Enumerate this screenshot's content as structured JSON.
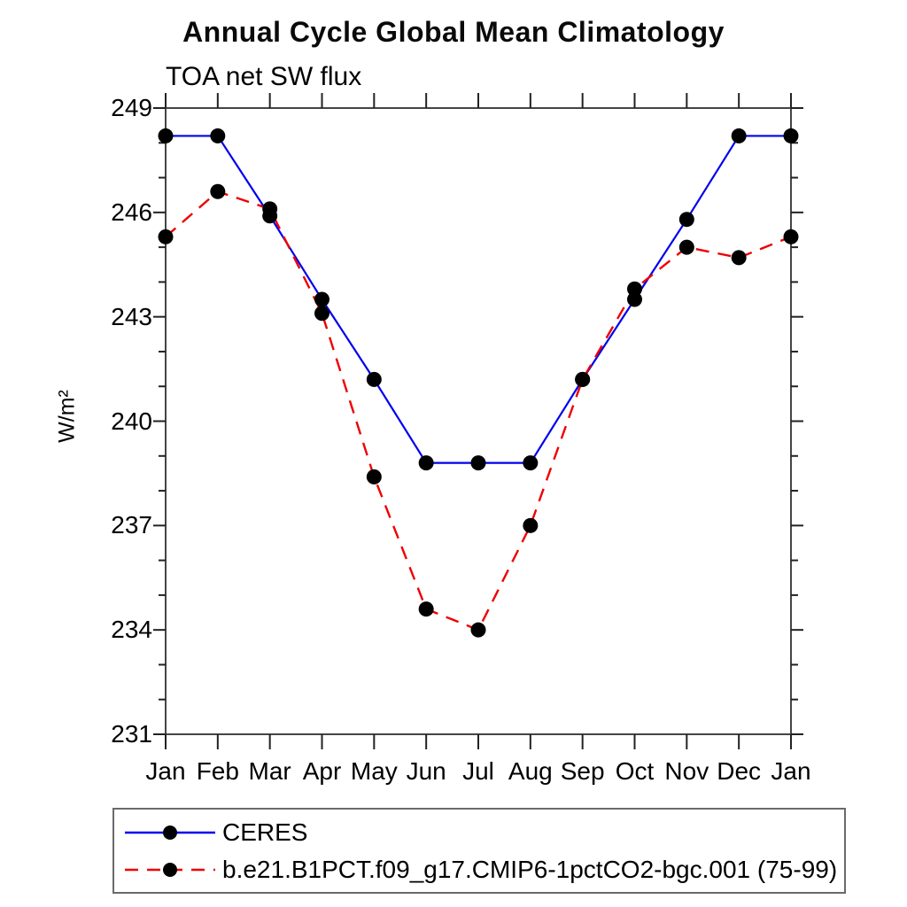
{
  "title": "Annual Cycle Global Mean Climatology",
  "subtitle": "TOA net SW flux",
  "chart_data": {
    "type": "line",
    "x_tick_labels": [
      "Jan",
      "Feb",
      "Mar",
      "Apr",
      "May",
      "Jun",
      "Jul",
      "Aug",
      "Sep",
      "Oct",
      "Nov",
      "Dec",
      "Jan"
    ],
    "xlabel": "",
    "ylabel": "W/m²",
    "ylim": [
      231,
      249
    ],
    "y_major_ticks": [
      231,
      234,
      237,
      240,
      243,
      246,
      249
    ],
    "y_minor_step": 1,
    "grid": false,
    "legend_position": "bottom-left-box",
    "frame_color": "#444444",
    "tick_color": "#222222",
    "marker_color": "#000000",
    "series": [
      {
        "name": "CERES",
        "color": "#0000ee",
        "line_style": "solid",
        "marker": "filled-circle",
        "values": [
          248.2,
          248.2,
          245.9,
          243.5,
          241.2,
          238.8,
          238.8,
          238.8,
          241.2,
          243.5,
          245.8,
          248.2,
          248.2
        ]
      },
      {
        "name": "b.e21.B1PCT.f09_g17.CMIP6-1pctCO2-bgc.001 (75-99)",
        "color": "#ee0000",
        "line_style": "dashed",
        "marker": "filled-circle",
        "values": [
          245.3,
          246.6,
          246.1,
          243.1,
          238.4,
          234.6,
          234.0,
          237.0,
          241.2,
          243.8,
          245.0,
          244.7,
          245.3
        ]
      }
    ]
  }
}
